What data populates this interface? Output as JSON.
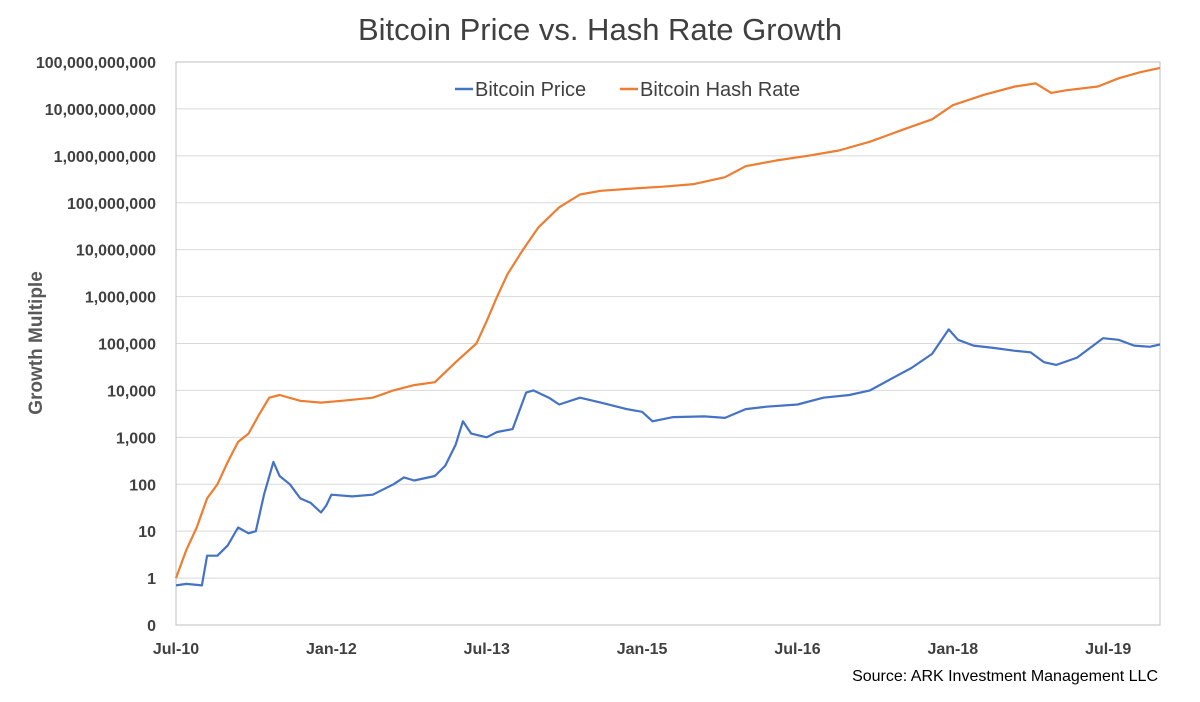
{
  "chart_data": {
    "type": "line",
    "title": "Bitcoin Price vs. Hash Rate Growth",
    "ylabel": "Growth Multiple",
    "xlabel": "",
    "yscale": "log",
    "ylim": [
      0,
      100000000000
    ],
    "y_ticks": [
      {
        "value": 0,
        "label": "0"
      },
      {
        "value": 1,
        "label": "1"
      },
      {
        "value": 10,
        "label": "10"
      },
      {
        "value": 100,
        "label": "100"
      },
      {
        "value": 1000,
        "label": "1,000"
      },
      {
        "value": 10000,
        "label": "10,000"
      },
      {
        "value": 100000,
        "label": "100,000"
      },
      {
        "value": 1000000,
        "label": "1,000,000"
      },
      {
        "value": 10000000,
        "label": "10,000,000"
      },
      {
        "value": 100000000,
        "label": "100,000,000"
      },
      {
        "value": 1000000000,
        "label": "1,000,000,000"
      },
      {
        "value": 10000000000,
        "label": "10,000,000,000"
      },
      {
        "value": 100000000000,
        "label": "100,000,000,000"
      }
    ],
    "x_range": [
      2010.5,
      2020.0
    ],
    "x_ticks": [
      {
        "value": 2010.5,
        "label": "Jul-10"
      },
      {
        "value": 2012.0,
        "label": "Jan-12"
      },
      {
        "value": 2013.5,
        "label": "Jul-13"
      },
      {
        "value": 2015.0,
        "label": "Jan-15"
      },
      {
        "value": 2016.5,
        "label": "Jul-16"
      },
      {
        "value": 2018.0,
        "label": "Jan-18"
      },
      {
        "value": 2019.5,
        "label": "Jul-19"
      }
    ],
    "grid": "horizontal",
    "legend_position": "top-center",
    "series": [
      {
        "name": "Bitcoin Price",
        "color": "#4472C4",
        "points": [
          [
            2010.5,
            0.7
          ],
          [
            2010.6,
            0.75
          ],
          [
            2010.75,
            0.7
          ],
          [
            2010.8,
            3
          ],
          [
            2010.9,
            3
          ],
          [
            2011.0,
            5
          ],
          [
            2011.1,
            12
          ],
          [
            2011.2,
            9
          ],
          [
            2011.27,
            10
          ],
          [
            2011.35,
            60
          ],
          [
            2011.44,
            300
          ],
          [
            2011.5,
            150
          ],
          [
            2011.6,
            100
          ],
          [
            2011.7,
            50
          ],
          [
            2011.8,
            40
          ],
          [
            2011.9,
            25
          ],
          [
            2011.95,
            35
          ],
          [
            2012.0,
            60
          ],
          [
            2012.2,
            55
          ],
          [
            2012.4,
            60
          ],
          [
            2012.6,
            100
          ],
          [
            2012.7,
            140
          ],
          [
            2012.8,
            120
          ],
          [
            2013.0,
            150
          ],
          [
            2013.1,
            250
          ],
          [
            2013.2,
            700
          ],
          [
            2013.27,
            2200
          ],
          [
            2013.35,
            1200
          ],
          [
            2013.5,
            1000
          ],
          [
            2013.6,
            1300
          ],
          [
            2013.75,
            1500
          ],
          [
            2013.88,
            9000
          ],
          [
            2013.95,
            10000
          ],
          [
            2014.1,
            7000
          ],
          [
            2014.2,
            5000
          ],
          [
            2014.4,
            7000
          ],
          [
            2014.6,
            5500
          ],
          [
            2014.85,
            4000
          ],
          [
            2015.0,
            3500
          ],
          [
            2015.1,
            2200
          ],
          [
            2015.3,
            2700
          ],
          [
            2015.6,
            2800
          ],
          [
            2015.8,
            2600
          ],
          [
            2016.0,
            4000
          ],
          [
            2016.2,
            4500
          ],
          [
            2016.5,
            5000
          ],
          [
            2016.75,
            7000
          ],
          [
            2017.0,
            8000
          ],
          [
            2017.2,
            10000
          ],
          [
            2017.45,
            20000
          ],
          [
            2017.6,
            30000
          ],
          [
            2017.8,
            60000
          ],
          [
            2017.96,
            200000
          ],
          [
            2018.05,
            120000
          ],
          [
            2018.2,
            90000
          ],
          [
            2018.4,
            80000
          ],
          [
            2018.6,
            70000
          ],
          [
            2018.75,
            65000
          ],
          [
            2018.88,
            40000
          ],
          [
            2019.0,
            35000
          ],
          [
            2019.2,
            50000
          ],
          [
            2019.45,
            130000
          ],
          [
            2019.6,
            120000
          ],
          [
            2019.75,
            90000
          ],
          [
            2019.9,
            85000
          ],
          [
            2020.0,
            95000
          ]
        ]
      },
      {
        "name": "Bitcoin Hash Rate",
        "color": "#ED7D31",
        "points": [
          [
            2010.5,
            1
          ],
          [
            2010.6,
            4
          ],
          [
            2010.7,
            12
          ],
          [
            2010.8,
            50
          ],
          [
            2010.9,
            100
          ],
          [
            2011.0,
            300
          ],
          [
            2011.1,
            800
          ],
          [
            2011.2,
            1200
          ],
          [
            2011.3,
            3000
          ],
          [
            2011.4,
            7000
          ],
          [
            2011.5,
            8000
          ],
          [
            2011.7,
            6000
          ],
          [
            2011.9,
            5500
          ],
          [
            2012.1,
            6000
          ],
          [
            2012.4,
            7000
          ],
          [
            2012.6,
            10000
          ],
          [
            2012.8,
            13000
          ],
          [
            2013.0,
            15000
          ],
          [
            2013.2,
            40000
          ],
          [
            2013.4,
            100000
          ],
          [
            2013.5,
            300000
          ],
          [
            2013.6,
            1000000
          ],
          [
            2013.7,
            3000000
          ],
          [
            2013.85,
            10000000
          ],
          [
            2014.0,
            30000000
          ],
          [
            2014.2,
            80000000
          ],
          [
            2014.4,
            150000000
          ],
          [
            2014.6,
            180000000
          ],
          [
            2014.9,
            200000000
          ],
          [
            2015.2,
            220000000
          ],
          [
            2015.5,
            250000000
          ],
          [
            2015.8,
            350000000
          ],
          [
            2016.0,
            600000000
          ],
          [
            2016.3,
            800000000
          ],
          [
            2016.6,
            1000000000
          ],
          [
            2016.9,
            1300000000
          ],
          [
            2017.2,
            2000000000
          ],
          [
            2017.5,
            3500000000
          ],
          [
            2017.8,
            6000000000
          ],
          [
            2018.0,
            12000000000
          ],
          [
            2018.3,
            20000000000
          ],
          [
            2018.6,
            30000000000
          ],
          [
            2018.8,
            35000000000
          ],
          [
            2018.95,
            22000000000
          ],
          [
            2019.1,
            25000000000
          ],
          [
            2019.4,
            30000000000
          ],
          [
            2019.6,
            45000000000
          ],
          [
            2019.8,
            60000000000
          ],
          [
            2020.0,
            75000000000
          ]
        ]
      }
    ],
    "source": "Source: ARK Investment Management LLC"
  }
}
